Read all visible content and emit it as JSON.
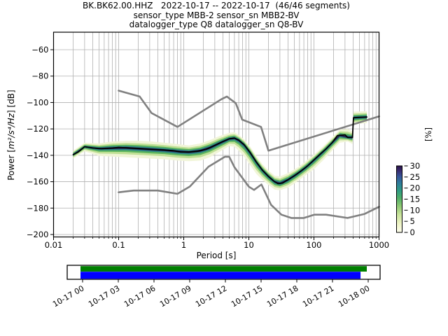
{
  "chart_data": {
    "type": "heatmap",
    "title": "BK.BK62.00.HHZ   2022-10-17 -- 2022-10-17  (46/46 segments)",
    "subtitle1": "sensor_type MBB-2 sensor_sn MBB2-BV",
    "subtitle2": "datalogger_type Q8 datalogger_sn Q8-BV",
    "xlabel": "Period [s]",
    "ylabel": "Power [m²/s⁴/Hz] [dB]",
    "ylabel_parts": {
      "prefix": "Power [",
      "math": "m²/s⁴/Hz",
      "suffix": "] [dB]"
    },
    "x_scale": "log",
    "xlim": [
      0.01,
      1000
    ],
    "ylim": [
      -200,
      -60
    ],
    "x_ticks": [
      0.01,
      0.1,
      1,
      10,
      100,
      1000
    ],
    "x_tick_labels": [
      "0.01",
      "0.1",
      "1",
      "10",
      "100",
      "1000"
    ],
    "y_ticks": [
      -60,
      -80,
      -100,
      -120,
      -140,
      -160,
      -180,
      -200
    ],
    "grid": true,
    "colors": {
      "grid": "#b0b0b0",
      "frame": "#000000",
      "noise_model": "#808080",
      "mode_line": "#000000",
      "band_layers": [
        "#f1f5d8",
        "#bfe095",
        "#5cb45e",
        "#2b8384",
        "#252253"
      ],
      "band_fractions": [
        1.0,
        0.68,
        0.44,
        0.26,
        0.12
      ]
    },
    "colorbar": {
      "label": "[%]",
      "ticks": [
        0,
        5,
        10,
        15,
        20,
        25,
        30
      ],
      "gradient_stops": [
        [
          0.0,
          "#fdfdec"
        ],
        [
          0.13,
          "#eef3c5"
        ],
        [
          0.27,
          "#c8e39a"
        ],
        [
          0.4,
          "#8cc873"
        ],
        [
          0.52,
          "#4fae68"
        ],
        [
          0.63,
          "#2f9b84"
        ],
        [
          0.74,
          "#2f7d9b"
        ],
        [
          0.84,
          "#36549a"
        ],
        [
          0.93,
          "#392a6e"
        ],
        [
          1.0,
          "#2a1147"
        ]
      ]
    },
    "series": [
      {
        "name": "high-noise-model",
        "x": [
          0.1,
          0.21,
          0.32,
          0.8,
          3.8,
          4.6,
          6.3,
          7.9,
          15.4,
          20,
          1000
        ],
        "y": [
          -91,
          -95.5,
          -108,
          -118.5,
          -97.5,
          -95.5,
          -100.5,
          -113,
          -118.5,
          -136.5,
          -110.5
        ]
      },
      {
        "name": "low-noise-model",
        "x": [
          0.1,
          0.17,
          0.4,
          0.8,
          1.24,
          2.4,
          4.3,
          5,
          6,
          10,
          12,
          15.6,
          21.9,
          31.6,
          45,
          70,
          101,
          154,
          328,
          600,
          1000
        ],
        "y": [
          -168,
          -166.7,
          -166.7,
          -169.2,
          -163.7,
          -148.6,
          -141.1,
          -141.1,
          -149,
          -163.8,
          -166.2,
          -162.1,
          -177.5,
          -185,
          -187.5,
          -187.5,
          -185,
          -185,
          -187.5,
          -184.4,
          -179
        ]
      },
      {
        "name": "psd-mode",
        "x": [
          0.02,
          0.024,
          0.03,
          0.04,
          0.055,
          0.08,
          0.1,
          0.15,
          0.22,
          0.32,
          0.5,
          0.7,
          0.9,
          1.2,
          1.6,
          2.2,
          3,
          4,
          5,
          6,
          7,
          8.5,
          10.5,
          13,
          16,
          20,
          24,
          28,
          33,
          40,
          50,
          65,
          80,
          100,
          125,
          155,
          190,
          230,
          300,
          330,
          390,
          405,
          650
        ],
        "y": [
          -139.5,
          -137.5,
          -133.5,
          -134.5,
          -135,
          -134.5,
          -134,
          -134.5,
          -135,
          -135.5,
          -136,
          -136.5,
          -137.5,
          -137.5,
          -137,
          -135.5,
          -132.5,
          -129.5,
          -127.5,
          -127,
          -128.5,
          -132,
          -138,
          -145,
          -151,
          -156,
          -159.5,
          -161.5,
          -161,
          -158.5,
          -155.5,
          -151.5,
          -148,
          -143.5,
          -139,
          -135,
          -130.5,
          -125,
          -124.5,
          -126.5,
          -126.5,
          -111.5,
          -111
        ]
      }
    ],
    "band": {
      "x": [
        0.02,
        0.03,
        0.05,
        0.08,
        0.13,
        0.2,
        0.32,
        0.5,
        0.8,
        1.2,
        1.8,
        2.5,
        3.5,
        5,
        6,
        7,
        8.5,
        10.5,
        13,
        16,
        20,
        25,
        30,
        40,
        55,
        75,
        100,
        140,
        190,
        250,
        330,
        390,
        405,
        650
      ],
      "upper": [
        -136.5,
        -130.5,
        -131,
        -129.5,
        -129,
        -129,
        -129.5,
        -130.5,
        -131.5,
        -132.5,
        -131,
        -128.5,
        -125.5,
        -123,
        -122.5,
        -124.5,
        -128,
        -133.5,
        -140.5,
        -146.5,
        -151.5,
        -155.5,
        -156,
        -153.5,
        -149.5,
        -144.5,
        -139.5,
        -133,
        -126.5,
        -120.5,
        -120,
        -122,
        -107,
        -106.5
      ],
      "lower": [
        -142.5,
        -137,
        -140.5,
        -141,
        -141.5,
        -142,
        -142.5,
        -143,
        -144,
        -144.5,
        -144,
        -141.5,
        -137.5,
        -133,
        -133.5,
        -136.5,
        -141,
        -147.5,
        -154,
        -158.5,
        -162.5,
        -166,
        -166.5,
        -164.5,
        -160,
        -155,
        -150.5,
        -143.5,
        -136.5,
        -130.5,
        -129.5,
        -131.5,
        -116.5,
        -115.5
      ]
    }
  },
  "timeline": {
    "tick_labels": [
      "10-17 00",
      "10-17 03",
      "10-17 06",
      "10-17 09",
      "10-17 12",
      "10-17 15",
      "10-17 18",
      "10-17 21",
      "10-18 00"
    ],
    "bars": [
      {
        "name": "data-extent-bar",
        "color": "#008000",
        "start_frac": 0.0425,
        "end_frac": 0.9575
      },
      {
        "name": "psd-coverage-bar",
        "color": "#0000ff",
        "start_frac": 0.0425,
        "end_frac": 0.9375
      }
    ]
  }
}
